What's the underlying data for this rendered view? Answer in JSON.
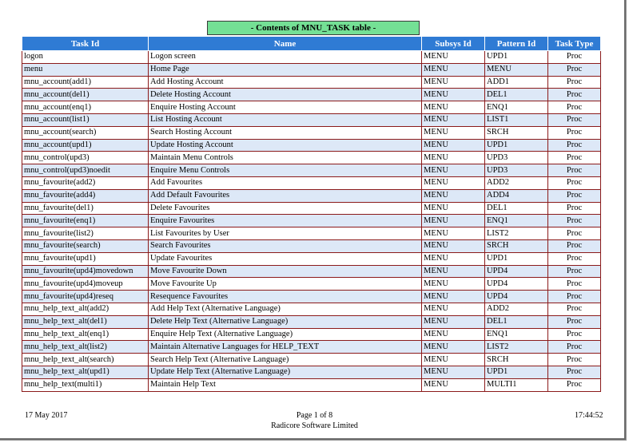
{
  "report": {
    "title": "- Contents of MNU_TASK table -",
    "columns": [
      "Task Id",
      "Name",
      "Subsys Id",
      "Pattern Id",
      "Task Type"
    ],
    "rows": [
      [
        "logon",
        "Logon screen",
        "MENU",
        "UPD1",
        "Proc"
      ],
      [
        "menu",
        "Home Page",
        "MENU",
        "MENU",
        "Proc"
      ],
      [
        "mnu_account(add1)",
        "Add Hosting Account",
        "MENU",
        "ADD1",
        "Proc"
      ],
      [
        "mnu_account(del1)",
        "Delete Hosting Account",
        "MENU",
        "DEL1",
        "Proc"
      ],
      [
        "mnu_account(enq1)",
        "Enquire Hosting Account",
        "MENU",
        "ENQ1",
        "Proc"
      ],
      [
        "mnu_account(list1)",
        "List Hosting Account",
        "MENU",
        "LIST1",
        "Proc"
      ],
      [
        "mnu_account(search)",
        "Search Hosting Account",
        "MENU",
        "SRCH",
        "Proc"
      ],
      [
        "mnu_account(upd1)",
        "Update Hosting Account",
        "MENU",
        "UPD1",
        "Proc"
      ],
      [
        "mnu_control(upd3)",
        "Maintain Menu Controls",
        "MENU",
        "UPD3",
        "Proc"
      ],
      [
        "mnu_control(upd3)noedit",
        "Enquire Menu Controls",
        "MENU",
        "UPD3",
        "Proc"
      ],
      [
        "mnu_favourite(add2)",
        "Add Favourites",
        "MENU",
        "ADD2",
        "Proc"
      ],
      [
        "mnu_favourite(add4)",
        "Add Default Favourites",
        "MENU",
        "ADD4",
        "Proc"
      ],
      [
        "mnu_favourite(del1)",
        "Delete Favourites",
        "MENU",
        "DEL1",
        "Proc"
      ],
      [
        "mnu_favourite(enq1)",
        "Enquire Favourites",
        "MENU",
        "ENQ1",
        "Proc"
      ],
      [
        "mnu_favourite(list2)",
        "List Favourites by User",
        "MENU",
        "LIST2",
        "Proc"
      ],
      [
        "mnu_favourite(search)",
        "Search Favourites",
        "MENU",
        "SRCH",
        "Proc"
      ],
      [
        "mnu_favourite(upd1)",
        "Update Favourites",
        "MENU",
        "UPD1",
        "Proc"
      ],
      [
        "mnu_favourite(upd4)movedown",
        "Move Favourite Down",
        "MENU",
        "UPD4",
        "Proc"
      ],
      [
        "mnu_favourite(upd4)moveup",
        "Move Favourite Up",
        "MENU",
        "UPD4",
        "Proc"
      ],
      [
        "mnu_favourite(upd4)reseq",
        "Resequence Favourites",
        "MENU",
        "UPD4",
        "Proc"
      ],
      [
        "mnu_help_text_alt(add2)",
        "Add Help Text (Alternative Language)",
        "MENU",
        "ADD2",
        "Proc"
      ],
      [
        "mnu_help_text_alt(del1)",
        "Delete Help Text (Alternative Language)",
        "MENU",
        "DEL1",
        "Proc"
      ],
      [
        "mnu_help_text_alt(enq1)",
        "Enquire Help Text (Alternative Language)",
        "MENU",
        "ENQ1",
        "Proc"
      ],
      [
        "mnu_help_text_alt(list2)",
        "Maintain Alternative Languages for HELP_TEXT",
        "MENU",
        "LIST2",
        "Proc"
      ],
      [
        "mnu_help_text_alt(search)",
        "Search Help Text (Alternative Language)",
        "MENU",
        "SRCH",
        "Proc"
      ],
      [
        "mnu_help_text_alt(upd1)",
        "Update Help Text (Alternative Language)",
        "MENU",
        "UPD1",
        "Proc"
      ],
      [
        "mnu_help_text(multi1)",
        "Maintain Help Text",
        "MENU",
        "MULTI1",
        "Proc"
      ]
    ]
  },
  "footer": {
    "date": "17 May 2017",
    "page": "Page 1 of 8",
    "company": "Radicore Software Limited",
    "time": "17:44:52"
  }
}
